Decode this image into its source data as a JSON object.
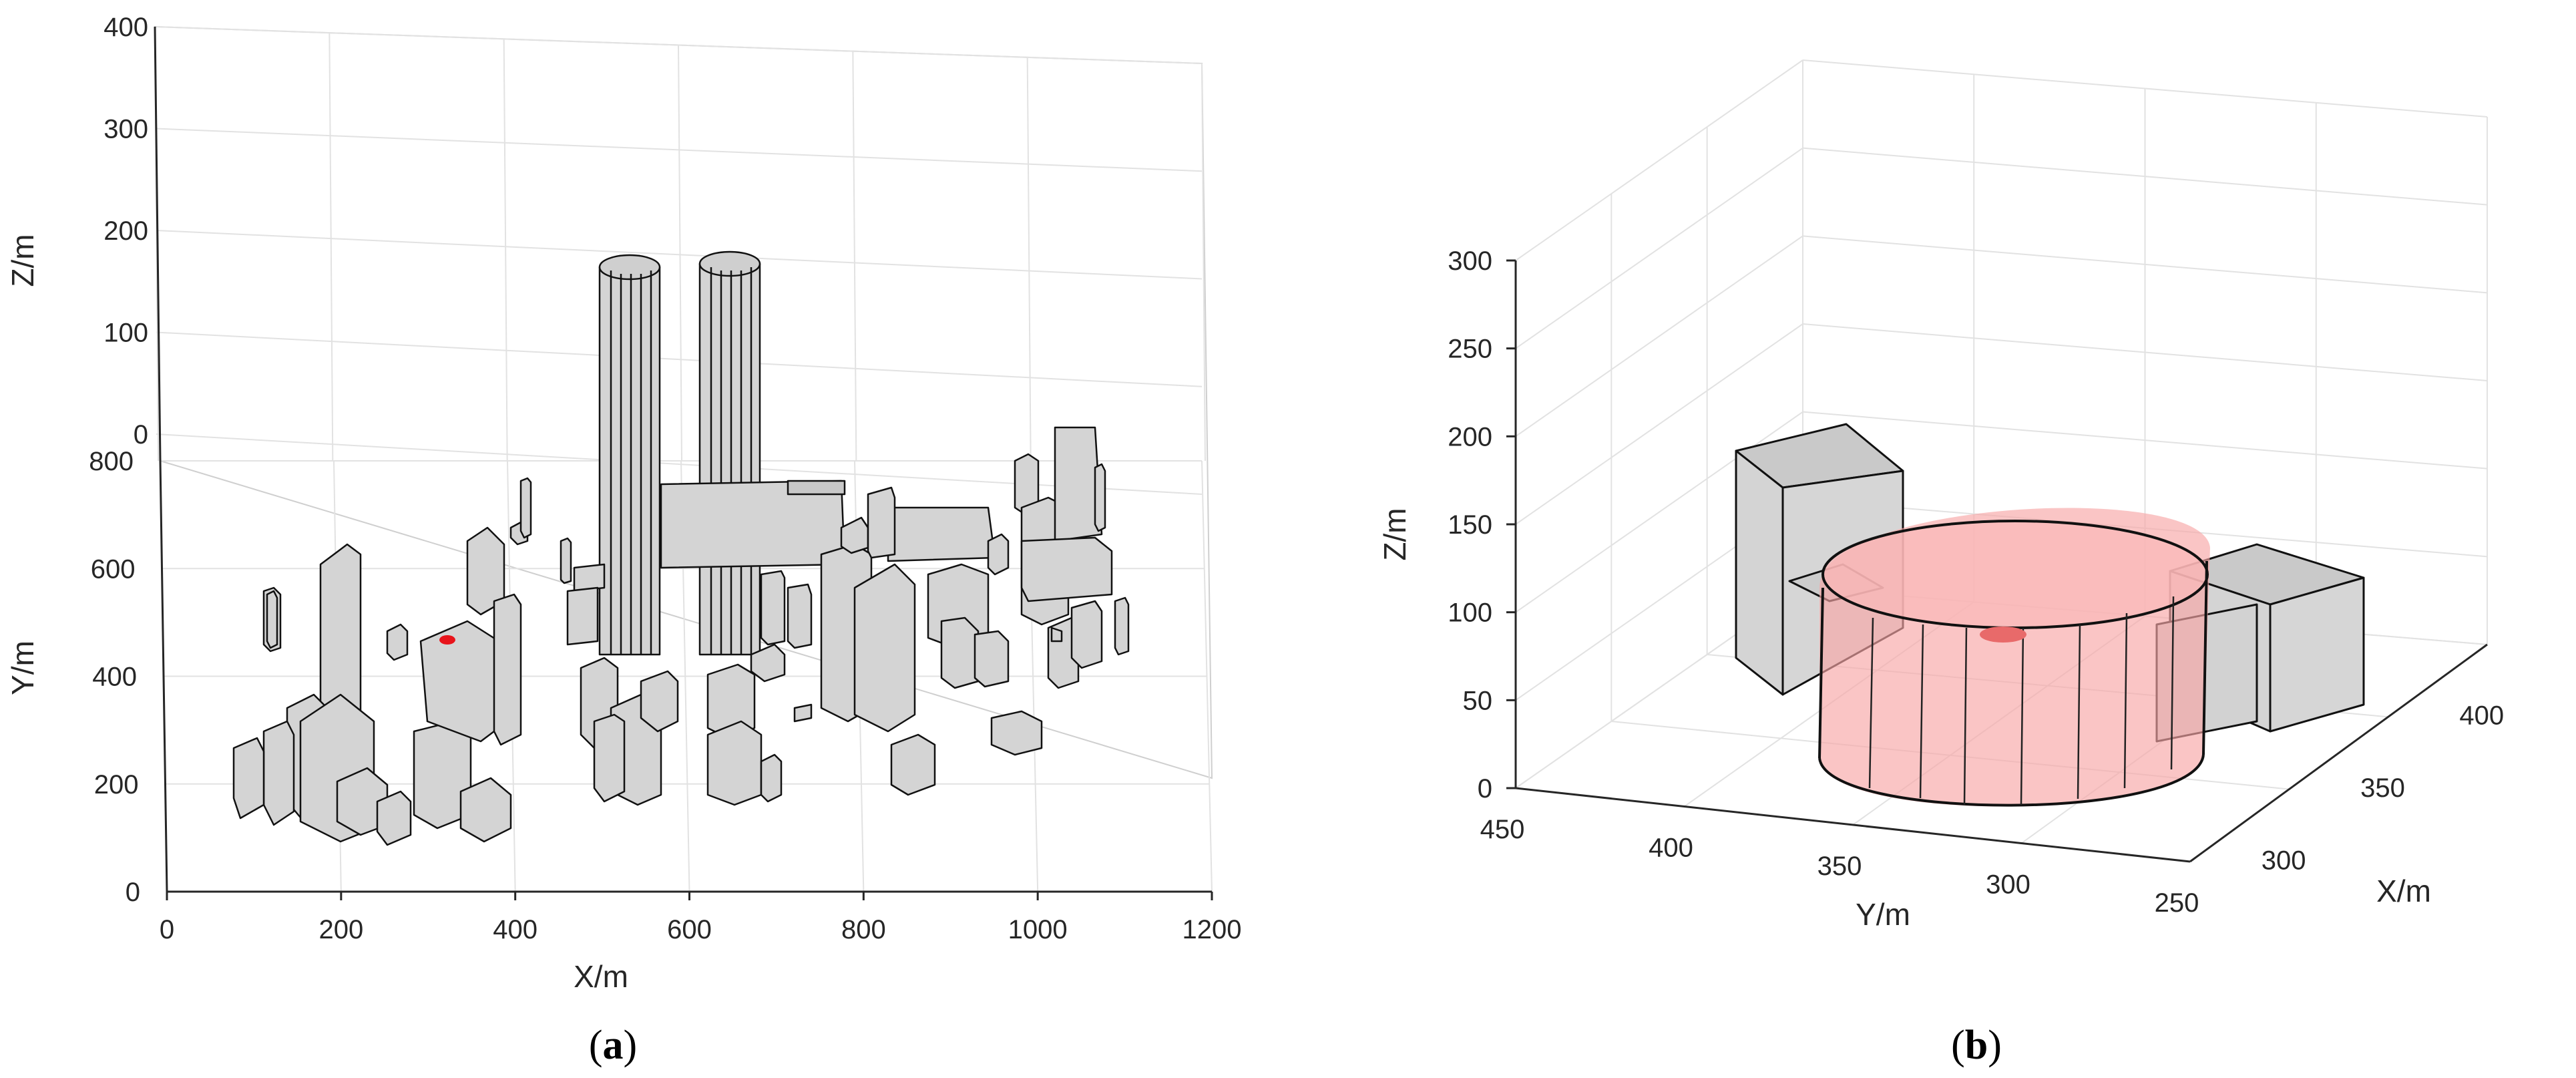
{
  "chart_data": [
    {
      "type": "scatter",
      "view": "3d",
      "description_label": "a",
      "xlabel": "X/m",
      "ylabel": "Y/m",
      "zlabel": "Z/m",
      "xlim": [
        0,
        1200
      ],
      "ylim": [
        0,
        800
      ],
      "zlim": [
        0,
        400
      ],
      "xticks": [
        "0",
        "200",
        "400",
        "600",
        "800",
        "1000",
        "1200"
      ],
      "yticks": [
        "0",
        "200",
        "400",
        "600",
        "800"
      ],
      "zticks": [
        "0",
        "100",
        "200",
        "300",
        "400"
      ],
      "grid": true,
      "colors": {
        "building": "#d4d4d4",
        "edge": "#000000",
        "marker": "#e8141b"
      }
    },
    {
      "type": "scatter",
      "view": "3d",
      "description_label": "b",
      "xlabel": "X/m",
      "ylabel": "Y/m",
      "zlabel": "Z/m",
      "xlim": [
        275,
        400
      ],
      "ylim": [
        250,
        450
      ],
      "zlim": [
        0,
        300
      ],
      "xticks": [
        "300",
        "350",
        "400"
      ],
      "yticks": [
        "450",
        "400",
        "350",
        "300",
        "250"
      ],
      "zticks": [
        "0",
        "50",
        "100",
        "150",
        "200",
        "250",
        "300"
      ],
      "grid": true,
      "colors": {
        "building": "#d4d4d4",
        "region": "#f7a6a6",
        "edge": "#000000"
      }
    }
  ],
  "captions": {
    "a": "a",
    "b": "b"
  }
}
